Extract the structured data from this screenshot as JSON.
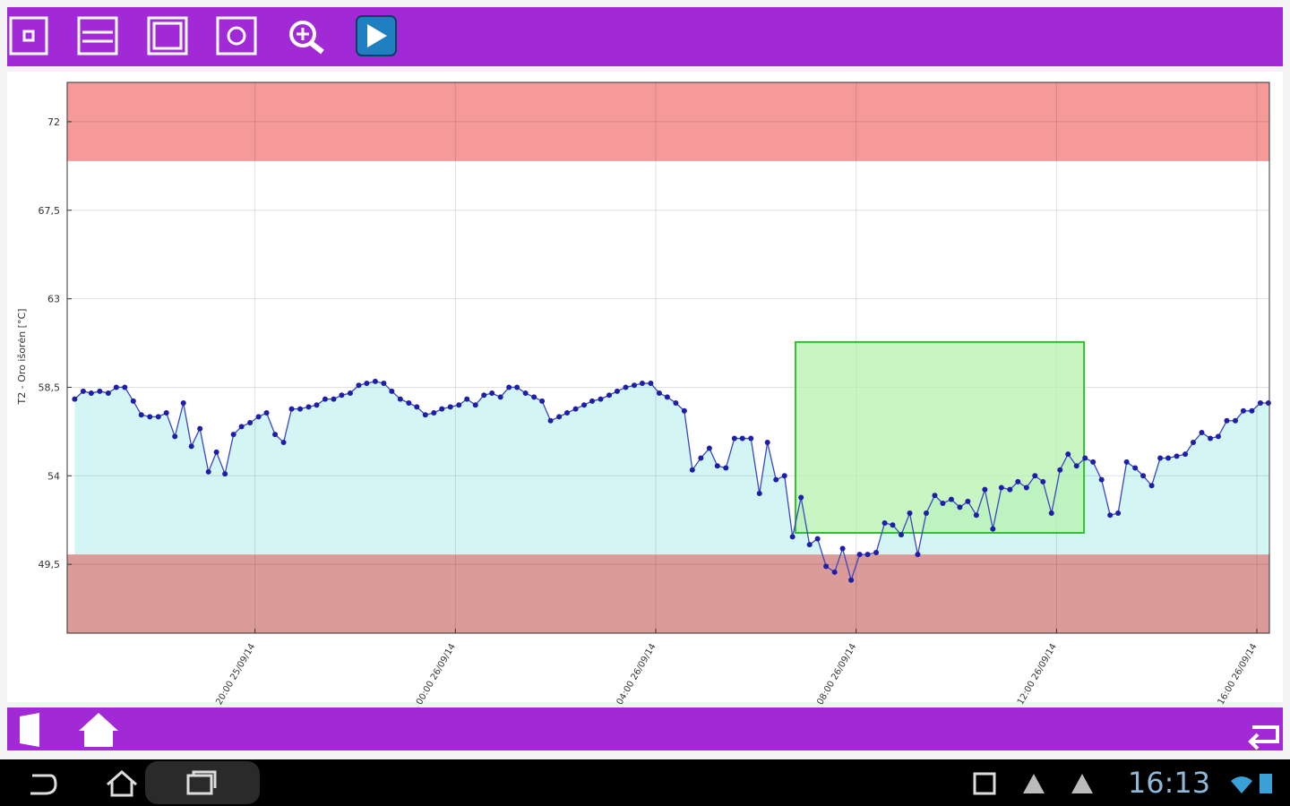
{
  "chart_data": {
    "type": "line",
    "ylabel": "T2 - Oro išorėn [°C]",
    "xlim": [
      16.25,
      40.25
    ],
    "ylim": [
      46,
      74
    ],
    "xticks": [
      {
        "value": 20,
        "label": "20:00 25/09/14"
      },
      {
        "value": 24,
        "label": "00:00 26/09/14"
      },
      {
        "value": 28,
        "label": "04:00 26/09/14"
      },
      {
        "value": 32,
        "label": "08:00 26/09/14"
      },
      {
        "value": 36,
        "label": "12:00 26/09/14"
      },
      {
        "value": 40,
        "label": "16:00 26/09/14"
      }
    ],
    "yticks": [
      {
        "value": 49.5,
        "label": "49,5"
      },
      54,
      {
        "value": 58.5,
        "label": "58,5"
      },
      63,
      {
        "value": 67.5,
        "label": "67,5"
      },
      72
    ],
    "grid": true,
    "fill_base": 50,
    "fill_color": "#d3f6f4",
    "bands": [
      {
        "from": 70,
        "to": 74,
        "color": "#f59a98"
      },
      {
        "from": 46,
        "to": 50,
        "color": "#db9b99"
      }
    ],
    "highlight": {
      "x": [
        30.79,
        36.55
      ],
      "y": [
        51.1,
        60.8
      ],
      "color": "#b5f2ac"
    },
    "series": [
      {
        "color": "#1e1ea8",
        "x": [
          16.4,
          16.57,
          16.73,
          16.9,
          17.07,
          17.23,
          17.4,
          17.57,
          17.73,
          17.9,
          18.07,
          18.23,
          18.4,
          18.57,
          18.73,
          18.9,
          19.07,
          19.23,
          19.4,
          19.57,
          19.73,
          19.9,
          20.07,
          20.23,
          20.4,
          20.57,
          20.73,
          20.9,
          21.07,
          21.23,
          21.4,
          21.57,
          21.73,
          21.9,
          22.07,
          22.23,
          22.4,
          22.57,
          22.73,
          22.9,
          23.07,
          23.23,
          23.4,
          23.57,
          23.73,
          23.9,
          24.07,
          24.23,
          24.4,
          24.57,
          24.73,
          24.9,
          25.07,
          25.23,
          25.4,
          25.57,
          25.73,
          25.9,
          26.07,
          26.23,
          26.4,
          26.57,
          26.73,
          26.9,
          27.07,
          27.23,
          27.4,
          27.57,
          27.73,
          27.9,
          28.07,
          28.23,
          28.4,
          28.57,
          28.73,
          28.9,
          29.07,
          29.23,
          29.4,
          29.57,
          29.73,
          29.9,
          30.07,
          30.23,
          30.4,
          30.57,
          30.73,
          30.9,
          31.07,
          31.23,
          31.4,
          31.57,
          31.73,
          31.9,
          32.07,
          32.23,
          32.4,
          32.57,
          32.73,
          32.9,
          33.07,
          33.23,
          33.4,
          33.57,
          33.73,
          33.9,
          34.07,
          34.23,
          34.4,
          34.57,
          34.73,
          34.9,
          35.07,
          35.23,
          35.4,
          35.57,
          35.73,
          35.9,
          36.07,
          36.23,
          36.4,
          36.57,
          36.73,
          36.9,
          37.07,
          37.23,
          37.4,
          37.57,
          37.73,
          37.9,
          38.07,
          38.23,
          38.4,
          38.57,
          38.73,
          38.9,
          39.07,
          39.23,
          39.4,
          39.57,
          39.73,
          39.9,
          40.07,
          40.23
        ],
        "values": [
          57.9,
          58.3,
          58.2,
          58.3,
          58.2,
          58.5,
          58.5,
          57.8,
          57.1,
          57.0,
          57.0,
          57.2,
          56.0,
          57.7,
          55.5,
          56.4,
          54.2,
          55.2,
          54.1,
          56.1,
          56.5,
          56.7,
          57.0,
          57.2,
          56.1,
          55.7,
          57.4,
          57.4,
          57.5,
          57.6,
          57.9,
          57.9,
          58.1,
          58.2,
          58.6,
          58.7,
          58.8,
          58.7,
          58.3,
          57.9,
          57.7,
          57.5,
          57.1,
          57.2,
          57.4,
          57.5,
          57.6,
          57.9,
          57.6,
          58.1,
          58.2,
          58.0,
          58.5,
          58.5,
          58.2,
          58.0,
          57.8,
          56.8,
          57.0,
          57.2,
          57.4,
          57.6,
          57.8,
          57.9,
          58.1,
          58.3,
          58.5,
          58.6,
          58.7,
          58.7,
          58.2,
          58.0,
          57.7,
          57.3,
          54.3,
          54.9,
          55.4,
          54.5,
          54.4,
          55.9,
          55.9,
          55.9,
          53.1,
          55.7,
          53.8,
          54.0,
          50.9,
          52.9,
          50.5,
          50.8,
          49.4,
          49.1,
          50.3,
          48.7,
          50.0,
          50.0,
          50.1,
          51.6,
          51.5,
          51.0,
          52.1,
          50.0,
          52.1,
          53.0,
          52.6,
          52.8,
          52.4,
          52.7,
          52.0,
          53.3,
          51.3,
          53.4,
          53.3,
          53.7,
          53.4,
          54.0,
          53.7,
          52.1,
          54.3,
          55.1,
          54.5,
          54.9,
          54.7,
          53.8,
          52.0,
          52.1,
          54.7,
          54.4,
          54.0,
          53.5,
          54.9,
          54.9,
          55.0,
          55.1,
          55.7,
          56.2,
          55.9,
          56.0,
          56.8,
          56.8,
          57.3,
          57.3,
          57.7,
          57.7
        ]
      }
    ]
  },
  "status_bar": {
    "time": "16:13"
  }
}
